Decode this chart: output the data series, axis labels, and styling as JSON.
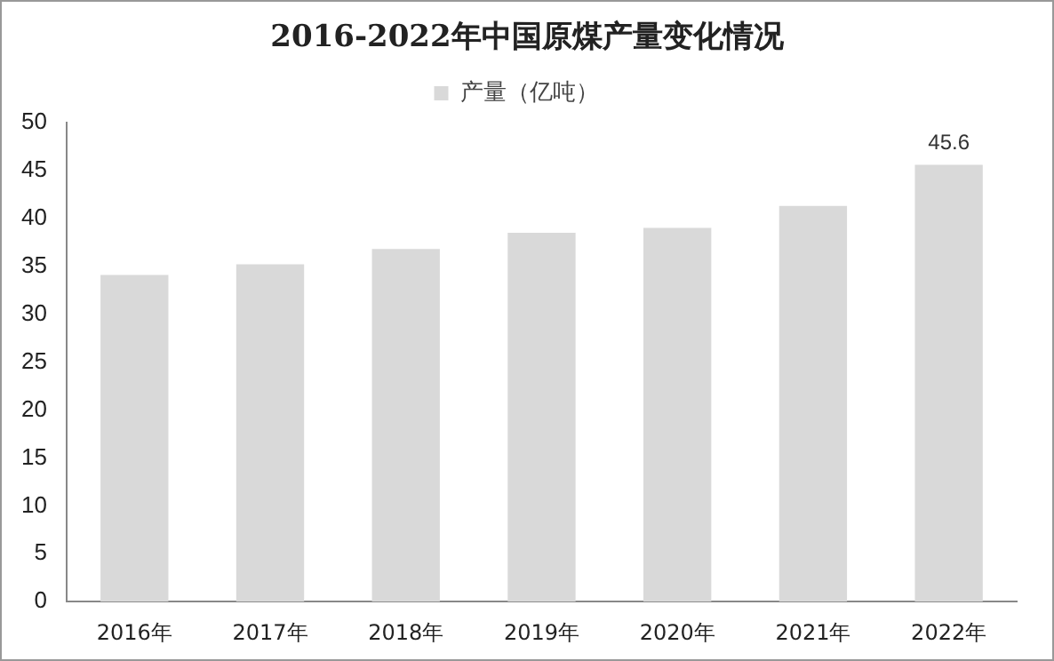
{
  "chart_data": {
    "type": "bar",
    "title": "2016-2022年中国原煤产量变化情况",
    "categories": [
      "2016年",
      "2017年",
      "2018年",
      "2019年",
      "2020年",
      "2021年",
      "2022年"
    ],
    "series": [
      {
        "name": "产量（亿吨）",
        "color": "#d9d9d9",
        "values": [
          34.1,
          35.2,
          36.8,
          38.5,
          39.0,
          41.3,
          45.6
        ],
        "value_labels": [
          null,
          null,
          null,
          null,
          null,
          null,
          "45.6"
        ]
      }
    ],
    "ylim": [
      0,
      50
    ],
    "yticks": [
      0,
      5,
      10,
      15,
      20,
      25,
      30,
      35,
      40,
      45,
      50
    ],
    "grid": false,
    "legend": "top"
  }
}
